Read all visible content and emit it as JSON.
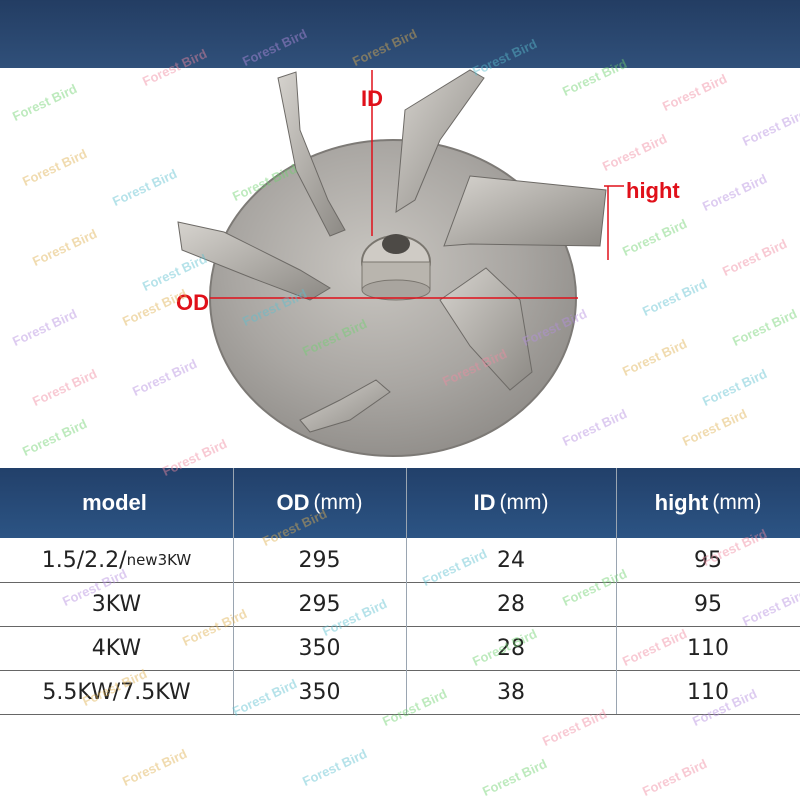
{
  "diagram": {
    "labels": {
      "id": "ID",
      "od": "OD",
      "height": "hight"
    }
  },
  "table": {
    "headers": [
      {
        "main": "model",
        "unit": ""
      },
      {
        "main": "OD",
        "unit": "(mm)"
      },
      {
        "main": "ID",
        "unit": "(mm)"
      },
      {
        "main": "hight",
        "unit": "(mm)"
      }
    ],
    "rows": [
      {
        "model": "1.5/2.2/",
        "model_suffix": "new3KW",
        "od": "295",
        "id": "24",
        "hight": "95"
      },
      {
        "model": "3KW",
        "model_suffix": "",
        "od": "295",
        "id": "28",
        "hight": "95"
      },
      {
        "model": "4KW",
        "model_suffix": "",
        "od": "350",
        "id": "28",
        "hight": "110"
      },
      {
        "model": "5.5KW/7.5KW",
        "model_suffix": "",
        "od": "350",
        "id": "38",
        "hight": "110"
      }
    ]
  },
  "watermark": {
    "text": "Forest Bird",
    "colors": [
      "#6fd16f",
      "#f08aa0",
      "#b48ee0",
      "#e0b050",
      "#5cc0d0"
    ]
  },
  "colors": {
    "header_bg": "#22406a",
    "dimension_red": "#e0101a"
  }
}
